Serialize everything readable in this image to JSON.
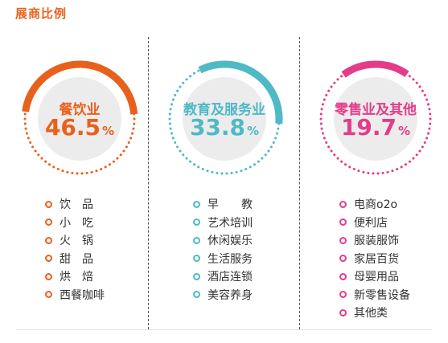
{
  "title": "展商比例",
  "chart_data": {
    "type": "pie",
    "categories": [
      "餐饮业",
      "教育及服务业",
      "零售业及其他"
    ],
    "values": [
      46.5,
      33.8,
      19.7
    ],
    "unit": "%",
    "series": [
      {
        "name": "餐饮业",
        "value": "46.5",
        "unit": "%",
        "color": "#e8611c",
        "items": [
          "饮　品",
          "小　吃",
          "火　锅",
          "甜　品",
          "烘　焙",
          "西餐咖啡"
        ]
      },
      {
        "name": "教育及服务业",
        "value": "33.8",
        "unit": "%",
        "color": "#4fb9c6",
        "items": [
          "早　　教",
          "艺术培训",
          "休闲娱乐",
          "生活服务",
          "酒店连锁",
          "美容养身"
        ]
      },
      {
        "name": "零售业及其他",
        "value": "19.7",
        "unit": "%",
        "color": "#e43c89",
        "items": [
          "电商o2o",
          "便利店",
          "服装服饰",
          "家居百货",
          "母婴用品",
          "新零售设备",
          "其他类"
        ]
      }
    ]
  }
}
